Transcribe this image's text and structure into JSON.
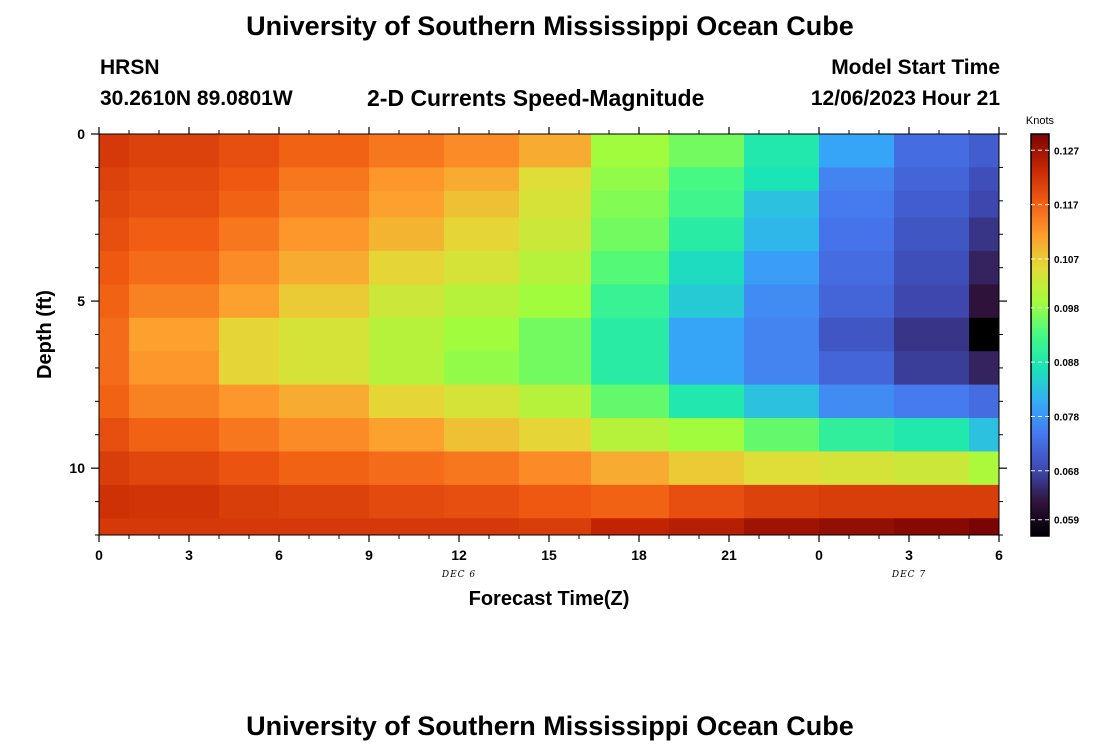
{
  "header": {
    "title": "University of Southern Mississippi Ocean Cube",
    "station": "HRSN",
    "coords": "30.2610N  89.0801W",
    "product": "2-D Currents Speed-Magnitude",
    "model_label": "Model Start Time",
    "model_time": "12/06/2023 Hour 21"
  },
  "footer": {
    "title": "University of Southern Mississippi Ocean Cube"
  },
  "chart_data": {
    "type": "heatmap",
    "title": "2-D Currents Speed-Magnitude",
    "xlabel": "Forecast Time(Z)",
    "ylabel": "Depth (ft)",
    "x_ticks": [
      "0",
      "3",
      "6",
      "9",
      "12",
      "15",
      "18",
      "21",
      "0",
      "3",
      "6"
    ],
    "day_labels": [
      {
        "text": "DEC 6",
        "tick_index": 4
      },
      {
        "text": "DEC 7",
        "tick_index": 9
      }
    ],
    "y_ticks": [
      {
        "label": "0",
        "value": 0
      },
      {
        "label": "5",
        "value": 5
      },
      {
        "label": "10",
        "value": 10
      }
    ],
    "ylim": [
      0,
      12
    ],
    "colorbar": {
      "unit": "Knots",
      "ticks": [
        "0.127",
        "0.117",
        "0.107",
        "0.098",
        "0.088",
        "0.078",
        "0.068",
        "0.059"
      ],
      "tick_values": [
        0.127,
        0.117,
        0.107,
        0.098,
        0.088,
        0.078,
        0.068,
        0.059
      ],
      "range": [
        0.056,
        0.13
      ],
      "stops": [
        "#7a0403",
        "#c42503",
        "#f05b12",
        "#fe9b2d",
        "#e2dc38",
        "#a4fc3c",
        "#46f884",
        "#1ae4b6",
        "#35abf8",
        "#4777ef",
        "#3e4ab3",
        "#30123b",
        "#000000"
      ]
    },
    "col_edges": [
      0,
      1,
      4,
      6,
      9,
      11.5,
      14,
      16.4,
      19,
      21.5,
      24,
      26.5,
      29,
      30
    ],
    "row_edges": [
      0,
      0.2,
      1.0,
      1.7,
      2.5,
      3.5,
      4.5,
      5.5,
      6.5,
      7.5,
      8.5,
      9.5,
      10.5,
      11.5,
      12
    ],
    "values": [
      [
        0.1215,
        0.1205,
        0.119,
        0.117,
        0.115,
        0.113,
        0.11,
        0.099,
        0.096,
        0.088,
        0.08,
        0.073,
        0.071
      ],
      [
        0.1215,
        0.1205,
        0.119,
        0.117,
        0.115,
        0.113,
        0.11,
        0.099,
        0.096,
        0.088,
        0.08,
        0.073,
        0.071
      ],
      [
        0.1205,
        0.1195,
        0.118,
        0.115,
        0.112,
        0.11,
        0.105,
        0.098,
        0.093,
        0.087,
        0.076,
        0.072,
        0.069
      ],
      [
        0.12,
        0.119,
        0.117,
        0.114,
        0.111,
        0.108,
        0.104,
        0.097,
        0.092,
        0.083,
        0.075,
        0.071,
        0.068
      ],
      [
        0.119,
        0.1175,
        0.115,
        0.112,
        0.109,
        0.106,
        0.103,
        0.096,
        0.089,
        0.082,
        0.074,
        0.07,
        0.066
      ],
      [
        0.118,
        0.116,
        0.113,
        0.11,
        0.106,
        0.104,
        0.101,
        0.094,
        0.086,
        0.079,
        0.073,
        0.069,
        0.064
      ],
      [
        0.117,
        0.114,
        0.111,
        0.107,
        0.103,
        0.101,
        0.099,
        0.091,
        0.084,
        0.077,
        0.072,
        0.068,
        0.062
      ],
      [
        0.116,
        0.111,
        0.106,
        0.104,
        0.101,
        0.099,
        0.096,
        0.089,
        0.08,
        0.076,
        0.07,
        0.066,
        0.056
      ],
      [
        0.116,
        0.112,
        0.106,
        0.104,
        0.101,
        0.098,
        0.096,
        0.089,
        0.08,
        0.076,
        0.072,
        0.067,
        0.064
      ],
      [
        0.117,
        0.114,
        0.112,
        0.11,
        0.106,
        0.104,
        0.101,
        0.095,
        0.088,
        0.083,
        0.077,
        0.075,
        0.073
      ],
      [
        0.119,
        0.117,
        0.115,
        0.113,
        0.111,
        0.108,
        0.106,
        0.101,
        0.099,
        0.095,
        0.09,
        0.088,
        0.083
      ],
      [
        0.121,
        0.12,
        0.1185,
        0.117,
        0.116,
        0.115,
        0.113,
        0.11,
        0.107,
        0.105,
        0.104,
        0.103,
        0.1
      ],
      [
        0.1225,
        0.122,
        0.121,
        0.1205,
        0.1195,
        0.119,
        0.118,
        0.117,
        0.119,
        0.1205,
        0.121,
        0.121,
        0.121
      ],
      [
        0.1215,
        0.1215,
        0.1215,
        0.1215,
        0.1215,
        0.1215,
        0.121,
        0.124,
        0.125,
        0.127,
        0.128,
        0.129,
        0.13
      ]
    ]
  }
}
